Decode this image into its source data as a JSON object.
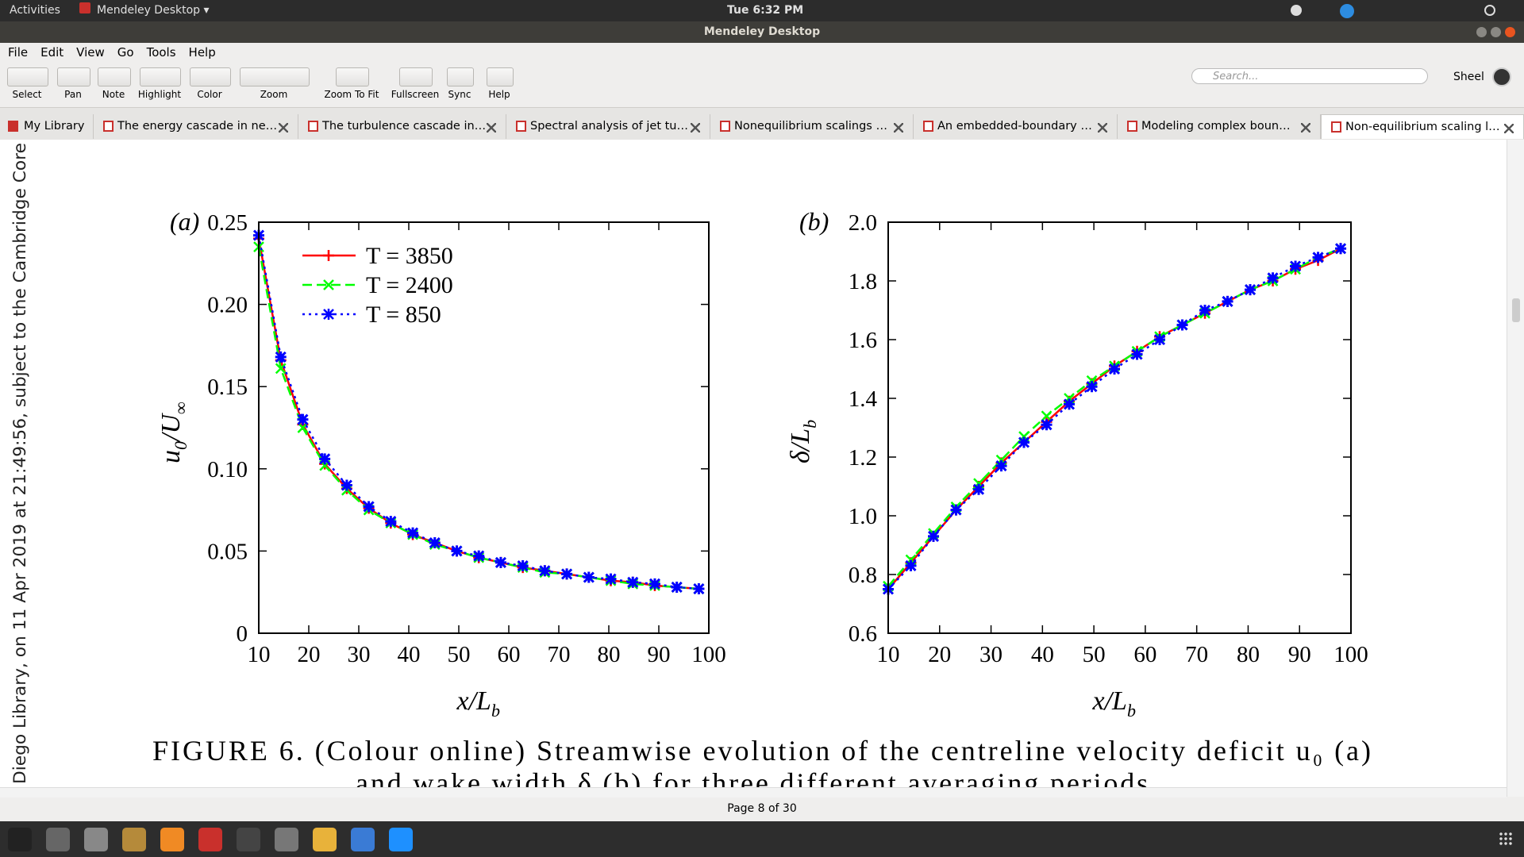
{
  "top_bar": {
    "activities": "Activities",
    "app_menu": "Mendeley Desktop ▾",
    "clock": "Tue  6:32 PM"
  },
  "window_title": "Mendeley Desktop",
  "menu": [
    "File",
    "Edit",
    "View",
    "Go",
    "Tools",
    "Help"
  ],
  "toolbar": [
    "Select",
    "Pan",
    "Note",
    "Highlight",
    "Color",
    "Zoom",
    "Zoom To Fit",
    "Fullscreen",
    "Sync",
    "Help"
  ],
  "search_placeholder": "Search...",
  "user": "Sheel",
  "tabs": [
    "My Library",
    "The energy cascade in ne…",
    "The turbulence cascade in…",
    "Spectral analysis of jet tu…",
    "Nonequilibrium scalings …",
    "An embedded-boundary …",
    "Modeling complex boun…",
    "Non-equilibrium scaling l…"
  ],
  "side_text": "Diego Library, on 11 Apr 2019 at 21:49:56, subject to the Cambridge Core",
  "chart_data": [
    {
      "type": "line",
      "panel_label": "(a)",
      "xlabel": [
        "x/L",
        "b"
      ],
      "ylabel": [
        "u",
        "0",
        "/U",
        "∞"
      ],
      "x": [
        10,
        14.4,
        18.8,
        23.2,
        27.6,
        32,
        36.4,
        40.8,
        45.2,
        49.6,
        54,
        58.4,
        62.8,
        67.2,
        71.6,
        76,
        80.4,
        84.8,
        89.2,
        93.6,
        98
      ],
      "xlim": [
        10,
        100
      ],
      "xticks": [
        10,
        20,
        30,
        40,
        50,
        60,
        70,
        80,
        90,
        100
      ],
      "ylim": [
        0,
        0.25
      ],
      "yticks": [
        0,
        0.05,
        {
          "value": 0.1,
          "label": "0.10"
        },
        0.15,
        {
          "value": 0.2,
          "label": "0.20"
        },
        0.25
      ],
      "legend": "upper left",
      "series": [
        {
          "name": "T = 3850",
          "color": "#ff0000",
          "dash": "solid",
          "marker": "plus",
          "values": [
            0.24,
            0.166,
            0.127,
            0.103,
            0.088,
            0.076,
            0.067,
            0.06,
            0.055,
            0.05,
            0.046,
            0.043,
            0.04,
            0.038,
            0.036,
            0.034,
            0.032,
            0.031,
            0.029,
            0.028,
            0.027
          ]
        },
        {
          "name": "T = 2400",
          "color": "#00ff00",
          "dash": "dashed",
          "marker": "cross",
          "values": [
            0.235,
            0.161,
            0.125,
            0.102,
            0.087,
            0.075,
            0.067,
            0.06,
            0.054,
            0.05,
            0.046,
            0.043,
            0.04,
            0.037,
            0.036,
            0.034,
            0.032,
            0.03,
            0.029,
            0.028,
            0.027
          ]
        },
        {
          "name": "T = 850",
          "color": "#0000ff",
          "dash": "dotted",
          "marker": "star",
          "values": [
            0.242,
            0.168,
            0.13,
            0.106,
            0.09,
            0.077,
            0.068,
            0.061,
            0.055,
            0.05,
            0.047,
            0.043,
            0.041,
            0.038,
            0.036,
            0.034,
            0.033,
            0.031,
            0.03,
            0.028,
            0.027
          ]
        }
      ]
    },
    {
      "type": "line",
      "panel_label": "(b)",
      "xlabel": [
        "x/L",
        "b"
      ],
      "ylabel": [
        "δ/L",
        "b"
      ],
      "x": [
        10,
        14.4,
        18.8,
        23.2,
        27.6,
        32,
        36.4,
        40.8,
        45.2,
        49.6,
        54,
        58.4,
        62.8,
        67.2,
        71.6,
        76,
        80.4,
        84.8,
        89.2,
        93.6,
        98
      ],
      "xlim": [
        10,
        100
      ],
      "xticks": [
        10,
        20,
        30,
        40,
        50,
        60,
        70,
        80,
        90,
        100
      ],
      "ylim": [
        0.6,
        2
      ],
      "yticks": [
        0.6,
        0.8,
        {
          "value": 1,
          "label": "1.0"
        },
        1.2,
        1.4,
        1.6,
        1.8,
        {
          "value": 2,
          "label": "2.0"
        }
      ],
      "series": [
        {
          "color": "#ff0000",
          "dash": "solid",
          "marker": "plus",
          "values": [
            0.75,
            0.84,
            0.93,
            1.02,
            1.1,
            1.18,
            1.25,
            1.32,
            1.39,
            1.45,
            1.51,
            1.56,
            1.61,
            1.65,
            1.69,
            1.73,
            1.77,
            1.8,
            1.84,
            1.87,
            1.91
          ]
        },
        {
          "color": "#00ff00",
          "dash": "dashed",
          "marker": "cross",
          "values": [
            0.76,
            0.85,
            0.94,
            1.03,
            1.11,
            1.19,
            1.27,
            1.34,
            1.4,
            1.46,
            1.51,
            1.56,
            1.61,
            1.65,
            1.69,
            1.73,
            1.77,
            1.8,
            1.84,
            1.88,
            1.91
          ]
        },
        {
          "color": "#0000ff",
          "dash": "dotted",
          "marker": "star",
          "values": [
            0.75,
            0.83,
            0.93,
            1.02,
            1.09,
            1.17,
            1.25,
            1.31,
            1.38,
            1.44,
            1.5,
            1.55,
            1.6,
            1.65,
            1.7,
            1.73,
            1.77,
            1.81,
            1.85,
            1.88,
            1.91
          ]
        }
      ]
    }
  ],
  "caption": [
    "FIGURE 6. (Colour online) Streamwise evolution of the centreline velocity deficit u₀ (a)",
    "and wake width δ (b) for three different averaging periods."
  ],
  "status": "Page 8 of 30"
}
